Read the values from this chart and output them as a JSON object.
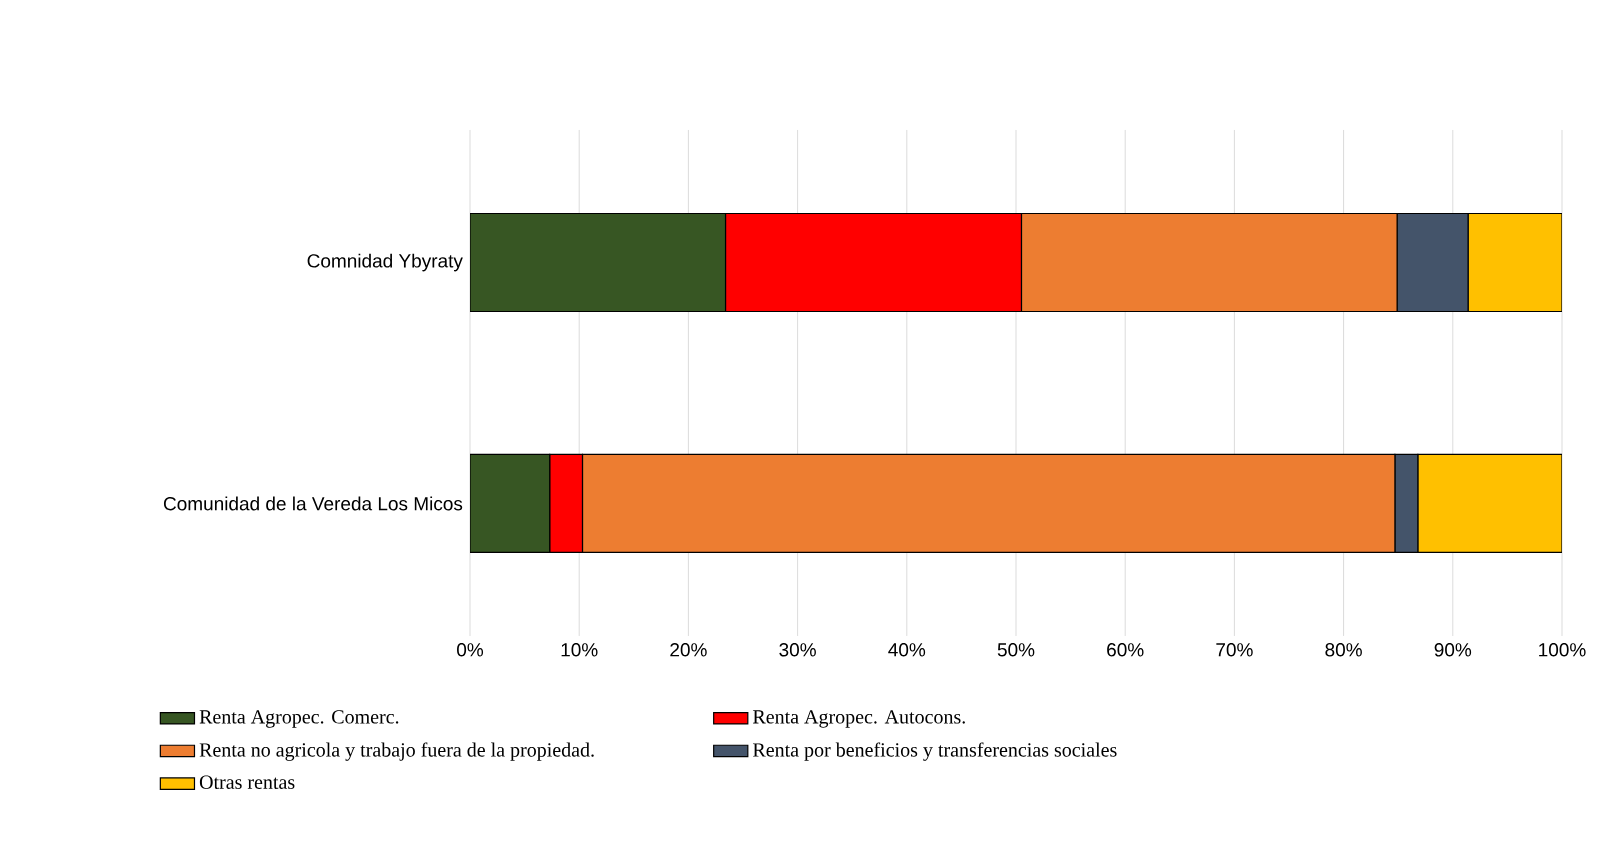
{
  "chart_data": {
    "type": "bar",
    "orientation": "horizontal",
    "stacked": true,
    "categories": [
      "Comnidad Ybyraty",
      "Comunidad de la Vereda Los Micos"
    ],
    "series": [
      {
        "name": "Renta Agropec. Comerc.",
        "color": "#375623",
        "values": [
          23.4,
          7.3
        ]
      },
      {
        "name": "Renta Agropec. Autocons.",
        "color": "#ff0000",
        "values": [
          27.1,
          3.0
        ]
      },
      {
        "name": "Renta no agricola y trabajo fuera de la propiedad.",
        "color": "#ed7d31",
        "values": [
          34.4,
          74.4
        ]
      },
      {
        "name": "Renta por beneficios y transferencias sociales",
        "color": "#44546a",
        "values": [
          6.5,
          2.1
        ]
      },
      {
        "name": "Otras rentas",
        "color": "#ffc000",
        "values": [
          8.6,
          13.2
        ]
      }
    ],
    "xlim": [
      0,
      100
    ],
    "xticks": [
      {
        "value": 0,
        "label": "0%"
      },
      {
        "value": 10,
        "label": "10%"
      },
      {
        "value": 20,
        "label": "20%"
      },
      {
        "value": 30,
        "label": "30%"
      },
      {
        "value": 40,
        "label": "40%"
      },
      {
        "value": 50,
        "label": "50%"
      },
      {
        "value": 60,
        "label": "60%"
      },
      {
        "value": 70,
        "label": "70%"
      },
      {
        "value": 80,
        "label": "80%"
      },
      {
        "value": 90,
        "label": "90%"
      },
      {
        "value": 100,
        "label": "100%"
      }
    ],
    "grid": "x",
    "legend": "bottom"
  }
}
